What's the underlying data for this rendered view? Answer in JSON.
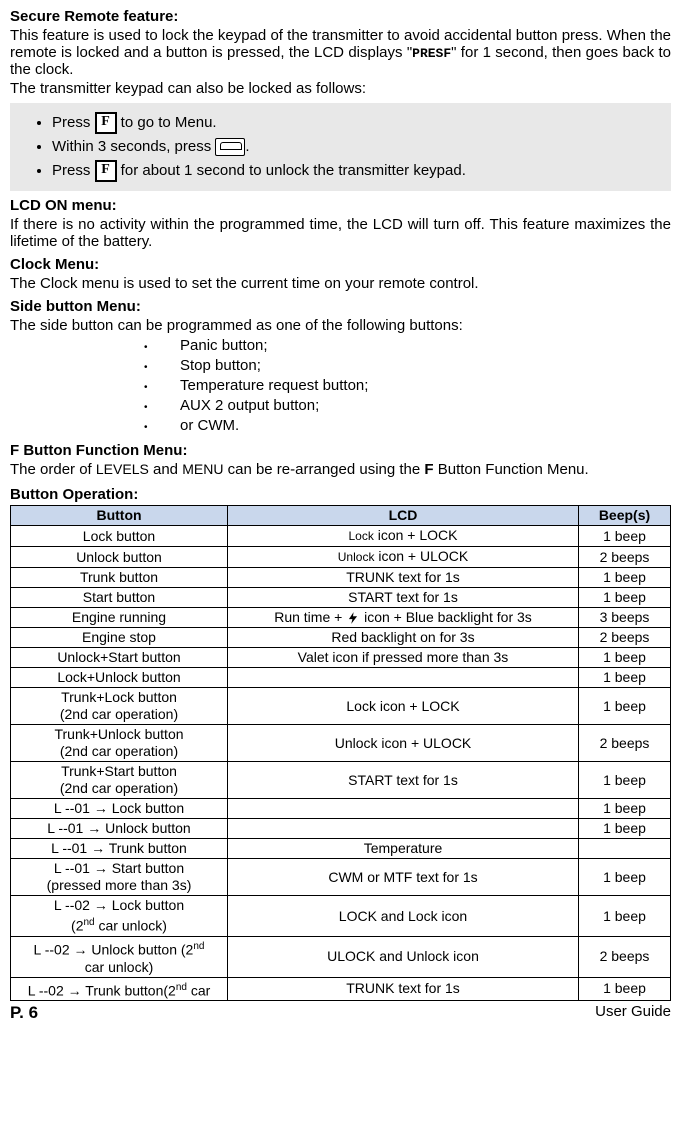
{
  "sections": {
    "secure_title": "Secure Remote feature:",
    "secure_p1": "This feature is used to lock the keypad of the transmitter to avoid accidental button press. When the remote is locked and a button is pressed, the LCD displays \"",
    "secure_presf": "PRESF",
    "secure_p1_end": "\" for 1 second, then goes back to the clock.",
    "secure_p2": "The transmitter keypad can also be locked as follows:",
    "callout": {
      "li1_a": "Press ",
      "li1_b": " to go to Menu.",
      "li2_a": "Within 3 seconds, press ",
      "li2_b": ".",
      "li3_a": "Press ",
      "li3_b": " for about 1 second to unlock the transmitter keypad."
    },
    "lcd_title": "LCD ON menu:",
    "lcd_p": "If there is no activity within the programmed time, the LCD will turn off. This feature maximizes the lifetime of the battery.",
    "clock_title": "Clock Menu:",
    "clock_p": "The Clock menu is used to set the current time on your remote control.",
    "side_title": "Side button Menu:",
    "side_p": "The side button can be programmed as one of the following buttons:",
    "side_items": [
      "Panic button;",
      "Stop button;",
      "Temperature request button;",
      "AUX 2 output button;",
      "or CWM."
    ],
    "f_title": "F Button Function Menu:",
    "f_p_a": "The order of ",
    "f_levels": "LEVELS",
    "f_p_b": " and ",
    "f_menu": "MENU",
    "f_p_c": " can be re-arranged using the ",
    "f_bold": "F",
    "f_p_d": " Button Function Menu.",
    "op_title": "Button Operation:",
    "table_headers": [
      "Button",
      "LCD",
      "Beep(s)"
    ],
    "rows": [
      {
        "b": "Lock button",
        "l_small": "Lock",
        "l_rest": " icon + LOCK",
        "p": "1 beep"
      },
      {
        "b": "Unlock button",
        "l_small": "Unlock",
        "l_rest": " icon + ULOCK",
        "p": "2 beeps"
      },
      {
        "b": "Trunk button",
        "l": "TRUNK text for 1s",
        "p": "1 beep"
      },
      {
        "b": "Start button",
        "l": "START text for 1s",
        "p": "1 beep"
      },
      {
        "b": "Engine running",
        "l_pre": "Run time + ",
        "l_post": " icon + Blue backlight for 3s",
        "bolt": true,
        "p": "3 beeps"
      },
      {
        "b": "Engine stop",
        "l": "Red backlight on for 3s",
        "p": "2 beeps"
      },
      {
        "b": "Unlock+Start button",
        "l": "Valet icon if pressed more than 3s",
        "p": "1 beep"
      },
      {
        "b": "Lock+Unlock button",
        "l": "",
        "p": "1 beep"
      },
      {
        "b": "Trunk+Lock button\n(2nd car operation)",
        "l": "Lock icon + LOCK",
        "p": "1 beep"
      },
      {
        "b": "Trunk+Unlock button\n(2nd car operation)",
        "l": "Unlock icon + ULOCK",
        "p": "2 beeps"
      },
      {
        "b": "Trunk+Start button\n(2nd car operation)",
        "l": "START text for 1s",
        "p": "1 beep"
      },
      {
        "b": "L --01 → Lock button",
        "l": "",
        "p": "1 beep"
      },
      {
        "b": "L --01 → Unlock button",
        "l": "",
        "p": "1 beep"
      },
      {
        "b": "L --01 → Trunk button",
        "l": "Temperature",
        "p": ""
      },
      {
        "b": "L --01 → Start button\n(pressed more than 3s)",
        "l": "CWM or MTF text for 1s",
        "p": "1 beep"
      },
      {
        "b_html": "L --02 → Lock button\n(2<sup>nd</sup> car unlock)",
        "l": "LOCK and Lock icon",
        "p": "1 beep"
      },
      {
        "b_html": "L --02 → Unlock button (2<sup>nd</sup>\ncar unlock)",
        "l": "ULOCK and Unlock icon",
        "p": "2 beeps"
      },
      {
        "b_html": "L --02 → Trunk button(2<sup>nd</sup> car",
        "l": "TRUNK text for 1s",
        "p": "1 beep"
      }
    ]
  },
  "footer": {
    "page": "P. 6",
    "guide": "User Guide"
  }
}
